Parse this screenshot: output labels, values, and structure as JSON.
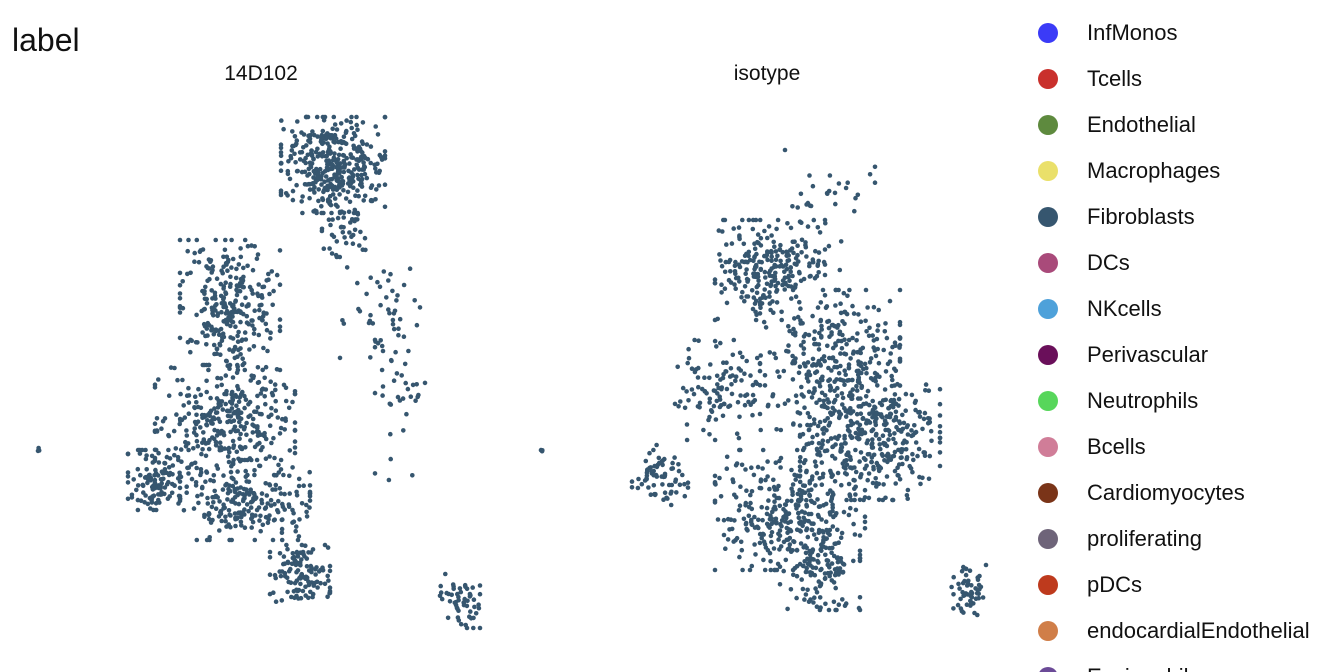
{
  "chart_data": {
    "type": "scatter",
    "title": "label",
    "facets": [
      "14D102",
      "isotype"
    ],
    "grid": false,
    "legend_position": "right",
    "legend": [
      {
        "label": "InfMonos",
        "color": "#3B3BF7"
      },
      {
        "label": "Tcells",
        "color": "#C9302C"
      },
      {
        "label": "Endothelial",
        "color": "#5E8A3E"
      },
      {
        "label": "Macrophages",
        "color": "#EAE06A"
      },
      {
        "label": "Fibroblasts",
        "color": "#36566F"
      },
      {
        "label": "DCs",
        "color": "#A94A7A"
      },
      {
        "label": "NKcells",
        "color": "#4EA1DA"
      },
      {
        "label": "Perivascular",
        "color": "#6A0F5A"
      },
      {
        "label": "Neutrophils",
        "color": "#57D65B"
      },
      {
        "label": "Bcells",
        "color": "#D07D98"
      },
      {
        "label": "Cardiomyocytes",
        "color": "#7A3418"
      },
      {
        "label": "proliferating",
        "color": "#6E6479"
      },
      {
        "label": "pDCs",
        "color": "#BE3A1D"
      },
      {
        "label": "endocardialEndothelial",
        "color": "#D07E48"
      },
      {
        "label": "Eosinophils",
        "color": "#6B4A97"
      }
    ],
    "series": [
      {
        "facet": "14D102",
        "cell_type": "Fibroblasts",
        "clusters": [
          {
            "cx": 333,
            "cy": 165,
            "rx": 52,
            "ry": 48,
            "n": 380
          },
          {
            "cx": 343,
            "cy": 225,
            "rx": 28,
            "ry": 32,
            "n": 45
          },
          {
            "cx": 230,
            "cy": 305,
            "rx": 50,
            "ry": 65,
            "n": 280
          },
          {
            "cx": 225,
            "cy": 420,
            "rx": 70,
            "ry": 55,
            "n": 330
          },
          {
            "cx": 160,
            "cy": 480,
            "rx": 32,
            "ry": 30,
            "n": 120
          },
          {
            "cx": 245,
            "cy": 500,
            "rx": 65,
            "ry": 40,
            "n": 230
          },
          {
            "cx": 300,
            "cy": 575,
            "rx": 30,
            "ry": 30,
            "n": 120
          },
          {
            "cx": 460,
            "cy": 600,
            "rx": 20,
            "ry": 28,
            "n": 55
          },
          {
            "cx": 380,
            "cy": 310,
            "rx": 40,
            "ry": 60,
            "n": 45
          },
          {
            "cx": 400,
            "cy": 400,
            "rx": 25,
            "ry": 80,
            "n": 35
          },
          {
            "cx": 38,
            "cy": 449,
            "rx": 2,
            "ry": 3,
            "n": 3
          }
        ]
      },
      {
        "facet": "isotype",
        "cell_type": "Fibroblasts",
        "clusters": [
          {
            "cx": 770,
            "cy": 270,
            "rx": 55,
            "ry": 50,
            "n": 250
          },
          {
            "cx": 830,
            "cy": 360,
            "rx": 70,
            "ry": 70,
            "n": 320
          },
          {
            "cx": 870,
            "cy": 440,
            "rx": 70,
            "ry": 60,
            "n": 380
          },
          {
            "cx": 720,
            "cy": 390,
            "rx": 45,
            "ry": 50,
            "n": 110
          },
          {
            "cx": 790,
            "cy": 510,
            "rx": 75,
            "ry": 60,
            "n": 330
          },
          {
            "cx": 820,
            "cy": 570,
            "rx": 40,
            "ry": 40,
            "n": 130
          },
          {
            "cx": 660,
            "cy": 475,
            "rx": 28,
            "ry": 30,
            "n": 70
          },
          {
            "cx": 968,
            "cy": 590,
            "rx": 18,
            "ry": 25,
            "n": 55
          },
          {
            "cx": 830,
            "cy": 210,
            "rx": 45,
            "ry": 60,
            "n": 35
          },
          {
            "cx": 543,
            "cy": 449,
            "rx": 2,
            "ry": 3,
            "n": 3
          }
        ]
      }
    ]
  },
  "style": {
    "point_color": "#36566F"
  }
}
